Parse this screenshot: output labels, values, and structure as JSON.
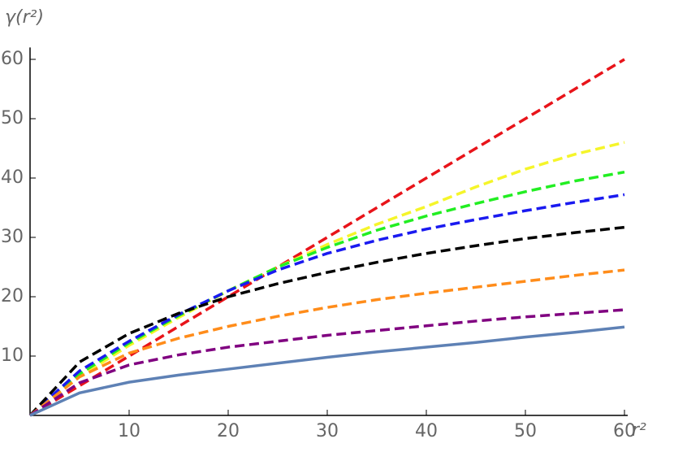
{
  "chart_data": {
    "type": "line",
    "x_label": "r²",
    "y_label": "γ(r²)",
    "x": [
      0,
      5,
      10,
      15,
      20,
      25,
      30,
      35,
      40,
      45,
      50,
      55,
      60
    ],
    "series": [
      {
        "color": "#e8141a",
        "style": "dashed",
        "values": [
          0,
          5,
          10,
          15,
          20,
          25,
          30,
          35,
          40,
          45,
          50,
          55,
          60
        ]
      },
      {
        "color": "#f5f52a",
        "style": "dashed",
        "values": [
          0,
          6.5,
          11.8,
          16.5,
          21,
          25,
          28.8,
          32.2,
          35.2,
          38.5,
          41.5,
          44,
          46
        ]
      },
      {
        "color": "#22ee22",
        "style": "dashed",
        "values": [
          0,
          7,
          12.2,
          16.8,
          21,
          25,
          28.3,
          31.2,
          33.6,
          35.7,
          37.7,
          39.5,
          41
        ]
      },
      {
        "color": "#1a1af0",
        "style": "dashed",
        "values": [
          0,
          7.5,
          12.5,
          17,
          21,
          24.5,
          27.3,
          29.5,
          31.4,
          33,
          34.5,
          35.9,
          37.2
        ]
      },
      {
        "color": "#000000",
        "style": "dashed",
        "values": [
          0,
          9,
          13.8,
          17.2,
          20,
          22.2,
          24.1,
          25.8,
          27.3,
          28.6,
          29.8,
          30.8,
          31.7
        ]
      },
      {
        "color": "#ff8c1a",
        "style": "dashed",
        "values": [
          0,
          6.5,
          10.5,
          13,
          15,
          16.7,
          18.2,
          19.5,
          20.6,
          21.6,
          22.6,
          23.6,
          24.5
        ]
      },
      {
        "color": "#800080",
        "style": "dashed",
        "values": [
          0,
          5.5,
          8.5,
          10.2,
          11.5,
          12.5,
          13.5,
          14.3,
          15.1,
          15.9,
          16.6,
          17.2,
          17.8
        ]
      },
      {
        "color": "#5e81b5",
        "style": "solid",
        "values": [
          0,
          3.8,
          5.6,
          6.8,
          7.8,
          8.8,
          9.8,
          10.7,
          11.5,
          12.3,
          13.2,
          14.0,
          14.9
        ]
      }
    ],
    "xlim": [
      0,
      60
    ],
    "ylim": [
      0,
      62
    ],
    "xticks": [
      10,
      20,
      30,
      40,
      50,
      60
    ],
    "yticks": [
      10,
      20,
      30,
      40,
      50,
      60
    ]
  }
}
